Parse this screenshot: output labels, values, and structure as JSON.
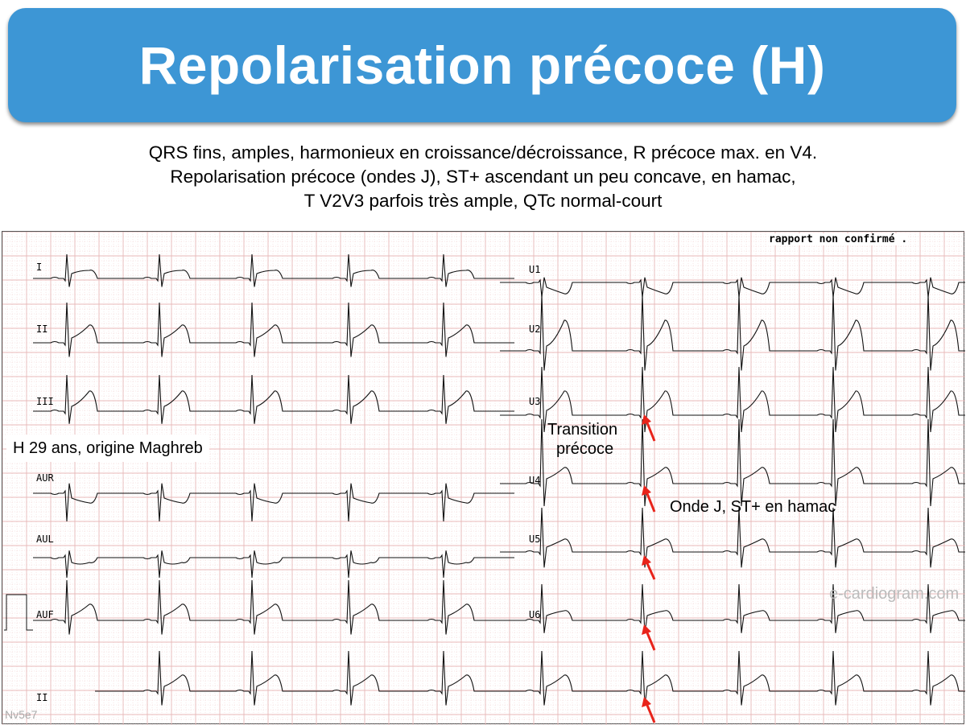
{
  "slide": {
    "title": "Repolarisation précoce (H)",
    "subtitle_lines": [
      "QRS fins, amples, harmonieux en croissance/décroissance, R précoce max. en V4.",
      "Repolarisation précoce (ondes J), ST+ ascendant un peu concave, en hamac,",
      "T V2V3 parfois très ample, QTc normal-court"
    ],
    "banner_color": "#3d96d5"
  },
  "ecg": {
    "report_text": "rapport non confirmé .",
    "patient_label": "H 29 ans, origine Maghreb",
    "annotation_transition_1": "Transition",
    "annotation_transition_2": "précoce",
    "annotation_j_wave": "Onde J, ST+ en hamac",
    "watermark": "e-cardiogram.com",
    "code": "Nv5e7",
    "arrow_color": "#e8231a",
    "grid_color": "#e8b8b8",
    "leads_left": [
      "I",
      "II",
      "III",
      "AUR",
      "AUL",
      "AUF",
      "II"
    ],
    "leads_right": [
      "U1",
      "U2",
      "U3",
      "U4",
      "U5",
      "U6"
    ]
  }
}
